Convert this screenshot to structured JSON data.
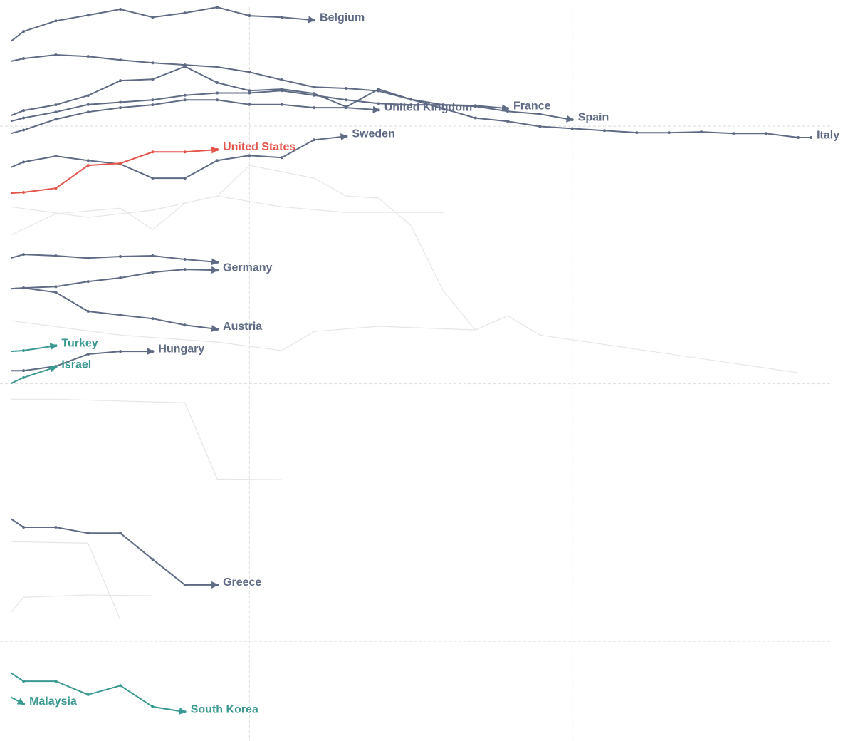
{
  "chart_data": {
    "type": "line",
    "xlim": [
      -0.73,
      25.39
    ],
    "ylim": [
      -3.87,
      24.9
    ],
    "xticks": [
      7,
      17
    ],
    "yticks": [
      0,
      10,
      20
    ],
    "grid": true,
    "series": [
      {
        "color": "#e6e6e6",
        "x": [
          -0.4,
          1,
          3,
          4,
          5,
          6,
          7,
          9,
          10,
          11,
          12,
          13,
          14,
          15,
          16,
          24
        ],
        "values": [
          15.77,
          16.6,
          16.82,
          15.99,
          17.01,
          17.29,
          18.48,
          17.98,
          17.29,
          17.21,
          16.15,
          13.61,
          12.09,
          12.64,
          11.89,
          10.43
        ]
      },
      {
        "color": "#e6e6e6",
        "x": [
          -0.4,
          2,
          4,
          6,
          8,
          10,
          12,
          13
        ],
        "values": [
          16.87,
          16.46,
          16.74,
          17.29,
          16.87,
          16.65,
          16.65,
          16.65
        ]
      },
      {
        "color": "#e6e6e6",
        "x": [
          -0.4,
          3,
          6,
          8,
          9,
          11,
          14
        ],
        "values": [
          12.45,
          11.89,
          11.62,
          11.29,
          12.03,
          12.23,
          12.09
        ]
      },
      {
        "color": "#e6e6e6",
        "x": [
          -0.4,
          1,
          5,
          6,
          8
        ],
        "values": [
          9.4,
          9.4,
          9.26,
          6.3,
          6.28
        ]
      },
      {
        "color": "#e6e6e6",
        "x": [
          -0.4,
          0,
          2,
          4
        ],
        "values": [
          1.11,
          1.71,
          1.8,
          1.77
        ]
      },
      {
        "color": "#e6e6e6",
        "x": [
          -0.4,
          2,
          3
        ],
        "values": [
          3.87,
          3.81,
          0.83
        ]
      },
      {
        "name": "Belgium",
        "color": "#5f6b85",
        "x": [
          -0.4,
          0,
          1,
          2,
          3,
          4,
          5,
          6,
          7,
          8,
          9
        ],
        "values": [
          23.29,
          23.68,
          24.09,
          24.31,
          24.54,
          24.23,
          24.4,
          24.62,
          24.29,
          24.23,
          24.12
        ]
      },
      {
        "name": "Italy",
        "color": "#5f6b85",
        "x": [
          -0.4,
          0,
          1,
          2,
          3,
          4,
          5,
          6,
          7,
          8,
          9,
          10,
          11,
          12,
          13,
          14,
          15,
          16,
          17,
          18,
          19,
          20,
          21,
          22,
          23,
          24,
          24.4
        ],
        "values": [
          22.52,
          22.63,
          22.77,
          22.71,
          22.57,
          22.46,
          22.38,
          22.3,
          22.1,
          21.8,
          21.52,
          21.47,
          21.37,
          21.04,
          20.68,
          20.32,
          20.19,
          19.99,
          19.91,
          19.83,
          19.75,
          19.75,
          19.78,
          19.72,
          19.72,
          19.56,
          19.56
        ]
      },
      {
        "name": "Spain",
        "color": "#5f6b85",
        "x": [
          -0.4,
          0,
          1,
          2,
          3,
          4,
          5,
          6,
          7,
          8,
          9,
          10,
          11,
          12,
          13,
          14,
          15,
          16,
          17
        ],
        "values": [
          20.41,
          20.61,
          20.83,
          21.19,
          21.77,
          21.82,
          22.32,
          21.69,
          21.38,
          21.44,
          21.27,
          20.75,
          21.44,
          21.04,
          20.83,
          20.77,
          20.58,
          20.47,
          20.25
        ]
      },
      {
        "name": "France",
        "color": "#5f6b85",
        "x": [
          -0.4,
          0,
          1,
          2,
          3,
          4,
          5,
          6,
          7,
          8,
          9,
          10,
          11,
          12,
          13,
          14,
          15
        ],
        "values": [
          20.19,
          20.32,
          20.55,
          20.84,
          20.93,
          21.02,
          21.2,
          21.29,
          21.29,
          21.38,
          21.2,
          21.02,
          20.88,
          20.83,
          20.83,
          20.8,
          20.69
        ]
      },
      {
        "name": "United Kingdom",
        "color": "#5f6b85",
        "x": [
          -0.4,
          0,
          1,
          2,
          3,
          4,
          5,
          6,
          7,
          8,
          9,
          10,
          11
        ],
        "values": [
          19.72,
          19.85,
          20.27,
          20.55,
          20.72,
          20.83,
          21.02,
          21.02,
          20.84,
          20.84,
          20.72,
          20.72,
          20.63
        ]
      },
      {
        "name": "Sweden",
        "color": "#5f6b85",
        "x": [
          -0.4,
          0,
          1,
          2,
          3,
          4,
          5,
          6,
          7,
          8,
          9,
          10
        ],
        "values": [
          18.4,
          18.61,
          18.84,
          18.67,
          18.53,
          17.98,
          17.98,
          18.67,
          18.86,
          18.78,
          19.47,
          19.61
        ]
      },
      {
        "name": "United States",
        "color": "#e5554a",
        "x": [
          -0.4,
          0,
          1,
          2,
          3,
          4,
          5,
          6
        ],
        "values": [
          17.4,
          17.43,
          17.59,
          18.48,
          18.56,
          19.0,
          19.0,
          19.09
        ]
      },
      {
        "color": "#5f6b85",
        "x": [
          -0.4,
          0,
          1,
          2,
          3,
          4,
          5,
          6
        ],
        "values": [
          14.88,
          15.02,
          14.97,
          14.88,
          14.94,
          14.97,
          14.83,
          14.72
        ]
      },
      {
        "name": "Germany",
        "color": "#5f6b85",
        "x": [
          -0.4,
          0,
          1,
          2,
          3,
          4,
          5,
          6
        ],
        "values": [
          13.69,
          13.72,
          13.77,
          13.97,
          14.11,
          14.33,
          14.44,
          14.41
        ]
      },
      {
        "name": "Austria",
        "color": "#5f6b85",
        "x": [
          -0.4,
          0,
          1,
          2,
          3,
          4,
          5,
          6
        ],
        "values": [
          13.69,
          13.72,
          13.55,
          12.81,
          12.67,
          12.53,
          12.28,
          12.12
        ]
      },
      {
        "name": "Hungary",
        "color": "#5f6b85",
        "x": [
          -0.4,
          0,
          1,
          2,
          3,
          4
        ],
        "values": [
          10.51,
          10.51,
          10.68,
          11.15,
          11.26,
          11.26
        ]
      },
      {
        "name": "Turkey",
        "color": "#3a9a92",
        "x": [
          -0.4,
          0,
          1
        ],
        "values": [
          11.26,
          11.29,
          11.48
        ]
      },
      {
        "name": "Israel",
        "color": "#3a9a92",
        "x": [
          -0.4,
          0,
          1
        ],
        "values": [
          10.01,
          10.24,
          10.65
        ]
      },
      {
        "name": "Greece",
        "color": "#5f6b85",
        "x": [
          -0.4,
          0,
          1,
          2,
          3,
          4,
          5,
          6
        ],
        "values": [
          4.76,
          4.43,
          4.43,
          4.2,
          4.2,
          3.18,
          2.19,
          2.19
        ]
      },
      {
        "name": "South Korea",
        "color": "#3a9a92",
        "x": [
          -0.4,
          0,
          1,
          2,
          3,
          4,
          5
        ],
        "values": [
          -1.22,
          -1.55,
          -1.55,
          -2.07,
          -1.72,
          -2.54,
          -2.74
        ]
      },
      {
        "name": "Malaysia",
        "color": "#3a9a92",
        "x": [
          -0.4,
          0
        ],
        "values": [
          -2.16,
          -2.43
        ]
      }
    ]
  }
}
